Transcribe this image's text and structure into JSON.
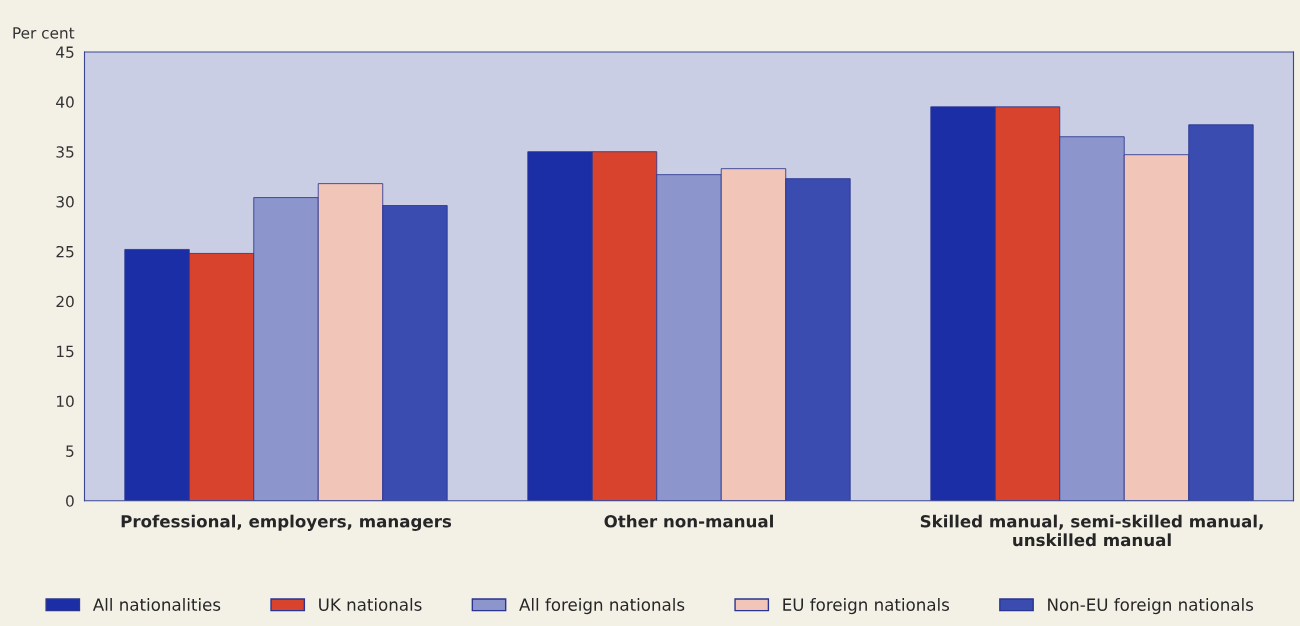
{
  "chart_data": {
    "type": "bar",
    "ylabel": "Per cent",
    "categories": [
      "Professional, employers, managers",
      "Other non-manual",
      "Skilled manual, semi-skilled manual,\nunskilled manual"
    ],
    "series": [
      {
        "name": "All nationalities",
        "color": "#1c2ea6",
        "values": [
          25.2,
          35.0,
          39.5
        ]
      },
      {
        "name": "UK nationals",
        "color": "#d8432e",
        "values": [
          24.8,
          35.0,
          39.5
        ]
      },
      {
        "name": "All foreign nationals",
        "color": "#8d96cc",
        "values": [
          30.4,
          32.7,
          36.5
        ]
      },
      {
        "name": "EU foreign nationals",
        "color": "#f2c5b9",
        "values": [
          31.8,
          33.3,
          34.7
        ]
      },
      {
        "name": "Non-EU foreign nationals",
        "color": "#3b4cb0",
        "values": [
          29.6,
          32.3,
          37.7
        ]
      }
    ],
    "ylim": [
      0,
      45
    ],
    "yticks": [
      0,
      5,
      10,
      15,
      20,
      25,
      30,
      35,
      40,
      45
    ],
    "grid": false,
    "legend": "bottom"
  }
}
